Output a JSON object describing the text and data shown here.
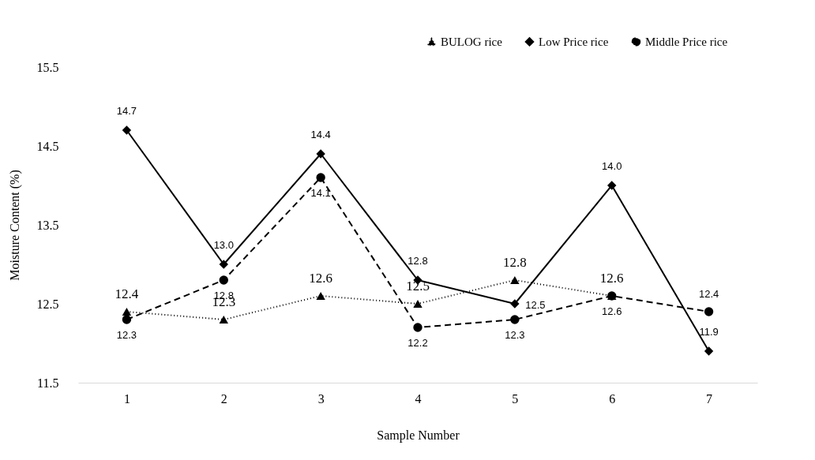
{
  "chart_data": {
    "type": "line",
    "xlabel": "Sample Number",
    "ylabel": "Moisture Content (%)",
    "categories": [
      "1",
      "2",
      "3",
      "4",
      "5",
      "6",
      "7"
    ],
    "ylim": [
      11.5,
      15.5
    ],
    "yticks": [
      11.5,
      12.5,
      13.5,
      14.5,
      15.5
    ],
    "grid": false,
    "legend": "top right",
    "series": [
      {
        "name": "BULOG rice",
        "color": "#000000",
        "marker": "triangle",
        "line_style": "dotted",
        "values": [
          12.4,
          12.3,
          12.6,
          12.5,
          12.8,
          12.6,
          null
        ],
        "value_labels": [
          "12.4",
          "12.3",
          "12.6",
          "12.5",
          "12.8",
          "12.6",
          null
        ]
      },
      {
        "name": "Low Price rice",
        "color": "#000000",
        "marker": "diamond",
        "line_style": "solid",
        "values": [
          14.7,
          13.0,
          14.4,
          12.8,
          12.5,
          14.0,
          11.9
        ],
        "value_labels": [
          "14.7",
          "13.0",
          "14.4",
          "12.8",
          "12.5",
          "14.0",
          "11.9"
        ]
      },
      {
        "name": "Middle Price rice",
        "color": "#000000",
        "marker": "circle",
        "line_style": "dashed",
        "values": [
          12.3,
          12.8,
          14.1,
          12.2,
          12.3,
          12.6,
          12.4
        ],
        "value_labels": [
          "12.3",
          "12.8",
          "14.1",
          "12.2",
          "12.3",
          "12.6",
          "12.4"
        ]
      }
    ]
  }
}
